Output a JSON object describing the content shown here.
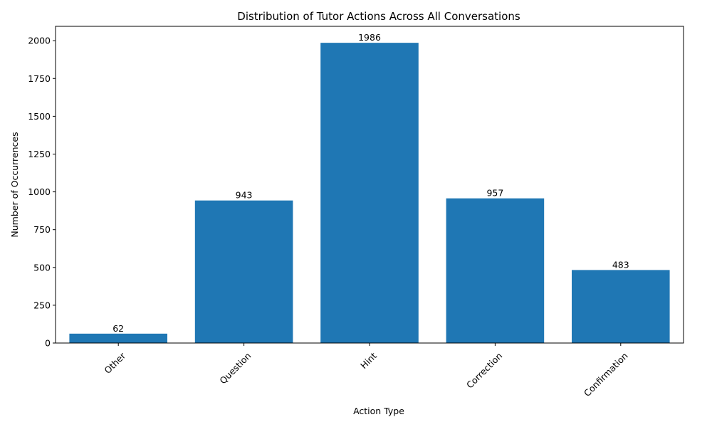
{
  "chart_data": {
    "type": "bar",
    "title": "Distribution of Tutor Actions Across All Conversations",
    "xlabel": "Action Type",
    "ylabel": "Number of Occurrences",
    "categories": [
      "Other",
      "Question",
      "Hint",
      "Correction",
      "Confirmation"
    ],
    "values": [
      62,
      943,
      1986,
      957,
      483
    ],
    "data_labels": [
      "62",
      "943",
      "1986",
      "957",
      "483"
    ],
    "ylim": [
      0,
      2095
    ],
    "yticks": [
      0,
      250,
      500,
      750,
      1000,
      1250,
      1500,
      1750,
      2000
    ],
    "x_tick_rotation_deg": 45,
    "grid": false,
    "legend": "none",
    "bar_color": "#1f77b4"
  }
}
